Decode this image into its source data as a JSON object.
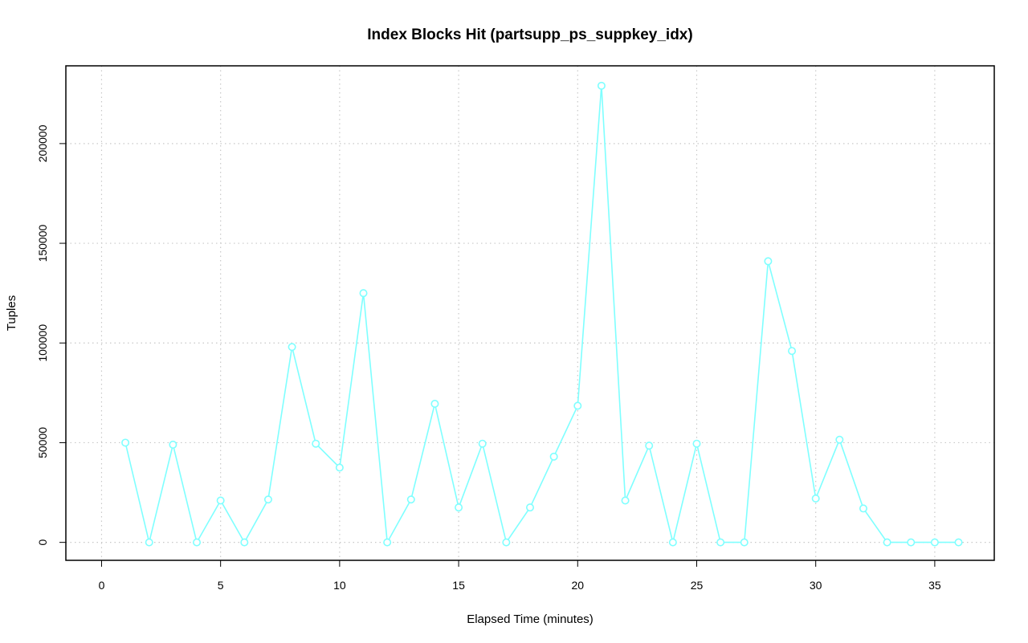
{
  "chart_data": {
    "type": "line",
    "title": "Index Blocks Hit (partsupp_ps_suppkey_idx)",
    "xlabel": "Elapsed Time (minutes)",
    "ylabel": "Tuples",
    "xlim": [
      -1.5,
      37.5
    ],
    "ylim": [
      -9000,
      239000
    ],
    "xticks": [
      0,
      5,
      10,
      15,
      20,
      25,
      30,
      35
    ],
    "yticks": [
      0,
      50000,
      100000,
      150000,
      200000
    ],
    "grid": true,
    "series": [
      {
        "color": "#7fffff",
        "marker": "open-circle",
        "x": [
          1,
          2,
          3,
          4,
          5,
          6,
          7,
          8,
          9,
          10,
          11,
          12,
          13,
          14,
          15,
          16,
          17,
          18,
          19,
          20,
          21,
          22,
          23,
          24,
          25,
          26,
          27,
          28,
          29,
          30,
          31,
          32,
          33,
          34,
          35,
          36
        ],
        "values": [
          50000,
          0,
          49000,
          0,
          21000,
          0,
          21500,
          98000,
          49500,
          37500,
          125000,
          0,
          21500,
          69500,
          17500,
          49500,
          0,
          17500,
          43000,
          68500,
          229000,
          21000,
          48500,
          0,
          49500,
          0,
          0,
          141000,
          96000,
          22000,
          51500,
          17000,
          0,
          0,
          0,
          0
        ]
      }
    ]
  }
}
